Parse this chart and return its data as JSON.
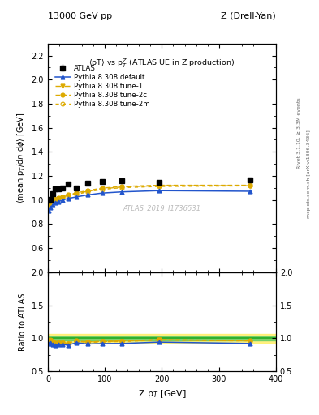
{
  "title_left": "13000 GeV pp",
  "title_right": "Z (Drell-Yan)",
  "plot_title": "<pT> vs p$_T^Z$ (ATLAS UE in Z production)",
  "xlabel": "Z p$_{T}$ [GeV]",
  "ylabel_main": "<mean p$_{T}$/dη dφ> [GeV]",
  "ylabel_ratio": "Ratio to ATLAS",
  "right_label_top": "Rivet 3.1.10, ≥ 3.3M events",
  "right_label_bot": "mcplots.cern.ch [arXiv:1306.3436]",
  "watermark": "ATLAS_2019_I1736531",
  "atlas_x": [
    2,
    5,
    8,
    13,
    18,
    25,
    35,
    50,
    70,
    95,
    130,
    195,
    355
  ],
  "atlas_y": [
    0.995,
    1.005,
    1.05,
    1.09,
    1.09,
    1.1,
    1.13,
    1.1,
    1.14,
    1.15,
    1.16,
    1.145,
    1.165
  ],
  "atlas_yerr": [
    0.015,
    0.012,
    0.012,
    0.012,
    0.012,
    0.012,
    0.012,
    0.012,
    0.012,
    0.012,
    0.012,
    0.012,
    0.018
  ],
  "py_default_x": [
    2,
    5,
    8,
    13,
    18,
    25,
    35,
    50,
    70,
    95,
    130,
    195,
    355
  ],
  "py_default_y": [
    0.91,
    0.935,
    0.955,
    0.975,
    0.985,
    0.997,
    1.012,
    1.025,
    1.042,
    1.057,
    1.067,
    1.077,
    1.072
  ],
  "py_tune1_x": [
    2,
    5,
    8,
    13,
    18,
    25,
    35,
    50,
    70,
    95,
    130,
    195,
    355
  ],
  "py_tune1_y": [
    0.955,
    0.975,
    0.992,
    1.005,
    1.012,
    1.022,
    1.038,
    1.052,
    1.072,
    1.092,
    1.108,
    1.118,
    1.118
  ],
  "py_tune2c_x": [
    2,
    5,
    8,
    13,
    18,
    25,
    35,
    50,
    70,
    95,
    130,
    195,
    355
  ],
  "py_tune2c_y": [
    0.958,
    0.978,
    0.993,
    1.007,
    1.015,
    1.027,
    1.042,
    1.058,
    1.078,
    1.098,
    1.112,
    1.122,
    1.122
  ],
  "py_tune2m_x": [
    2,
    5,
    8,
    13,
    18,
    25,
    35,
    50,
    70,
    95,
    130,
    195,
    355
  ],
  "py_tune2m_y": [
    0.975,
    0.988,
    0.997,
    1.007,
    1.012,
    1.022,
    1.033,
    1.047,
    1.067,
    1.087,
    1.102,
    1.112,
    1.117
  ],
  "ratio_default_y": [
    0.915,
    0.932,
    0.91,
    0.895,
    0.903,
    0.906,
    0.897,
    0.932,
    0.914,
    0.92,
    0.921,
    0.942,
    0.921
  ],
  "ratio_tune1_y": [
    0.961,
    0.971,
    0.946,
    0.924,
    0.929,
    0.931,
    0.922,
    0.957,
    0.941,
    0.951,
    0.957,
    0.978,
    0.961
  ],
  "ratio_tune2c_y": [
    0.964,
    0.974,
    0.947,
    0.926,
    0.932,
    0.936,
    0.925,
    0.962,
    0.945,
    0.955,
    0.96,
    0.981,
    0.965
  ],
  "ratio_tune2m_y": [
    0.981,
    0.984,
    0.95,
    0.925,
    0.929,
    0.931,
    0.915,
    0.954,
    0.936,
    0.946,
    0.951,
    0.974,
    0.96
  ],
  "color_default": "#2255cc",
  "color_tune1": "#ddaa00",
  "color_tune2c": "#ddaa00",
  "color_tune2m": "#ddaa00",
  "ylim_main": [
    0.4,
    2.3
  ],
  "yticks_main": [
    0.6,
    0.8,
    1.0,
    1.2,
    1.4,
    1.6,
    1.8,
    2.0,
    2.2
  ],
  "ylim_ratio": [
    0.5,
    2.0
  ],
  "yticks_ratio": [
    0.5,
    1.0,
    1.5,
    2.0
  ],
  "xlim": [
    0,
    400
  ],
  "xticks": [
    0,
    100,
    200,
    300,
    400
  ]
}
